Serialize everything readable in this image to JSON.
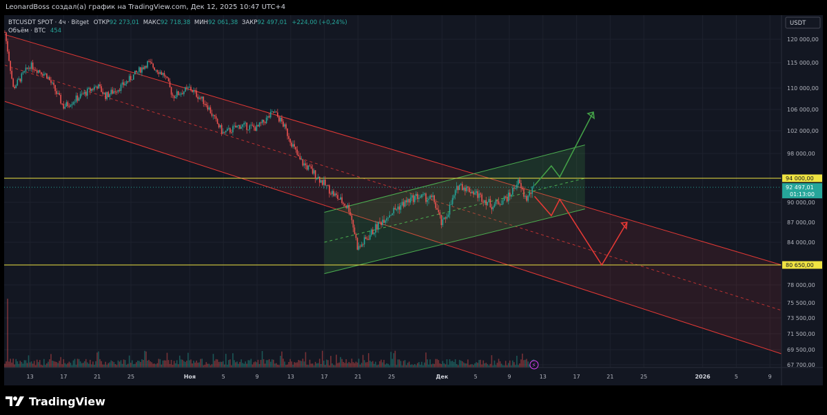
{
  "header": {
    "publish_line": "LeonardBoss создал(а) график на TradingView.com, Дек 12, 2025 10:47 UTC+4"
  },
  "legend": {
    "symbol": "BTCUSDT SPOT · 4ч · Bitget",
    "open_label": "ОТКР",
    "open_value": "92 273,01",
    "high_label": "МАКС",
    "high_value": "92 718,38",
    "low_label": "МИН",
    "low_value": "92 061,38",
    "close_label": "ЗАКР",
    "close_value": "92 497,01",
    "change": "+224,00 (+0,24%)",
    "volume_label": "Объём · BTC",
    "volume_value": "454"
  },
  "price_scale": {
    "currency": "USDT",
    "ticks": [
      {
        "label": "120 000,00",
        "value": 120000
      },
      {
        "label": "115 000,00",
        "value": 115000
      },
      {
        "label": "110 000,00",
        "value": 110000
      },
      {
        "label": "106 000,00",
        "value": 106000
      },
      {
        "label": "102 000,00",
        "value": 102000
      },
      {
        "label": "98 000,00",
        "value": 98000
      },
      {
        "label": "90 000,00",
        "value": 90000
      },
      {
        "label": "87 000,00",
        "value": 87000
      },
      {
        "label": "84 000,00",
        "value": 84000
      },
      {
        "label": "78 000,00",
        "value": 78000
      },
      {
        "label": "75 500,00",
        "value": 75500
      },
      {
        "label": "73 500,00",
        "value": 73500
      },
      {
        "label": "71 500,00",
        "value": 71500
      },
      {
        "label": "69 500,00",
        "value": 69500
      },
      {
        "label": "67 700,00",
        "value": 67700
      }
    ],
    "level_high": {
      "label": "94 000,00",
      "value": 94000
    },
    "level_low": {
      "label": "80 650,00",
      "value": 80650
    },
    "current": {
      "label": "92 497,01",
      "countdown": "01:13:00",
      "value": 92497
    }
  },
  "time_axis": {
    "ticks": [
      "13",
      "17",
      "21",
      "25",
      "Ноя",
      "5",
      "9",
      "13",
      "17",
      "21",
      "25",
      "Дек",
      "5",
      "9",
      "13",
      "17",
      "21",
      "25",
      "2026",
      "5",
      "9"
    ]
  },
  "footer": {
    "brand": "TradingView"
  },
  "colors": {
    "up": "#26a69a",
    "down": "#ef5350",
    "level": "#f0e442",
    "channel": "#e53935",
    "flag": "#4caf50",
    "arrow_up": "#43a047",
    "arrow_down": "#e53935"
  },
  "chart_data": {
    "type": "candlestick",
    "timeframe": "4ч",
    "x_start": "2025-10-10",
    "x_end": "2026-01-11",
    "ylim": [
      66500,
      123500
    ],
    "levels": [
      94000,
      80650
    ],
    "close_path": [
      {
        "date": "2025-10-10",
        "price": 121500
      },
      {
        "date": "2025-10-11",
        "price": 110000
      },
      {
        "date": "2025-10-13",
        "price": 114500
      },
      {
        "date": "2025-10-15",
        "price": 112500
      },
      {
        "date": "2025-10-17",
        "price": 106500
      },
      {
        "date": "2025-10-19",
        "price": 108500
      },
      {
        "date": "2025-10-21",
        "price": 110500
      },
      {
        "date": "2025-10-22",
        "price": 108500
      },
      {
        "date": "2025-10-24",
        "price": 110500
      },
      {
        "date": "2025-10-27",
        "price": 115000
      },
      {
        "date": "2025-10-29",
        "price": 112500
      },
      {
        "date": "2025-10-30",
        "price": 108500
      },
      {
        "date": "2025-11-01",
        "price": 110000
      },
      {
        "date": "2025-11-03",
        "price": 107000
      },
      {
        "date": "2025-11-04",
        "price": 104000
      },
      {
        "date": "2025-11-05",
        "price": 101500
      },
      {
        "date": "2025-11-07",
        "price": 103000
      },
      {
        "date": "2025-11-09",
        "price": 102500
      },
      {
        "date": "2025-11-11",
        "price": 105500
      },
      {
        "date": "2025-11-12",
        "price": 103500
      },
      {
        "date": "2025-11-14",
        "price": 97000
      },
      {
        "date": "2025-11-16",
        "price": 94500
      },
      {
        "date": "2025-11-18",
        "price": 91500
      },
      {
        "date": "2025-11-20",
        "price": 89000
      },
      {
        "date": "2025-11-21",
        "price": 83000
      },
      {
        "date": "2025-11-22",
        "price": 84500
      },
      {
        "date": "2025-11-24",
        "price": 87500
      },
      {
        "date": "2025-11-26",
        "price": 89500
      },
      {
        "date": "2025-11-28",
        "price": 91000
      },
      {
        "date": "2025-11-30",
        "price": 90500
      },
      {
        "date": "2025-12-01",
        "price": 86500
      },
      {
        "date": "2025-12-02",
        "price": 89500
      },
      {
        "date": "2025-12-03",
        "price": 93000
      },
      {
        "date": "2025-12-05",
        "price": 91500
      },
      {
        "date": "2025-12-07",
        "price": 89500
      },
      {
        "date": "2025-12-09",
        "price": 91000
      },
      {
        "date": "2025-12-10",
        "price": 93500
      },
      {
        "date": "2025-12-11",
        "price": 90500
      },
      {
        "date": "2025-12-12",
        "price": 92497
      }
    ],
    "volume_spike": {
      "date": "2025-10-10"
    }
  }
}
